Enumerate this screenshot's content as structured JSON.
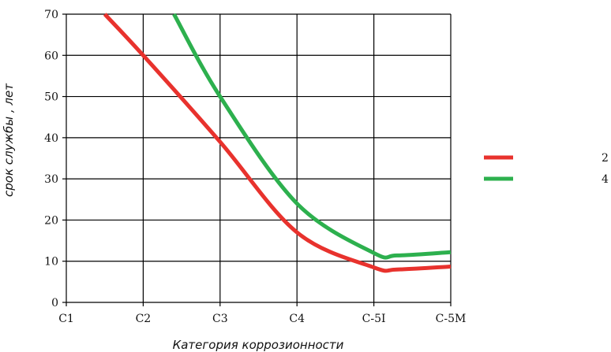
{
  "chart_data": {
    "type": "line",
    "categories": [
      "C1",
      "C2",
      "C3",
      "C4",
      "C-5I",
      "C-5M"
    ],
    "xlabel": "Категория коррозионности",
    "ylabel": "срок службы , лет",
    "ylim": [
      0,
      70
    ],
    "yticks": [
      0,
      10,
      20,
      30,
      40,
      50,
      60,
      70
    ],
    "grid": true,
    "legend_position": "right",
    "series": [
      {
        "name": "2",
        "color": "#e8322d",
        "x": [
          0.5,
          1,
          2,
          3,
          4,
          4.3,
          5
        ],
        "y": [
          70,
          60,
          39,
          17,
          8.5,
          8,
          8.7
        ]
      },
      {
        "name": "4",
        "color": "#2db04e",
        "x": [
          1.4,
          2,
          3,
          4,
          4.3,
          5
        ],
        "y": [
          70,
          50,
          24,
          12,
          11.4,
          12.2
        ]
      }
    ]
  }
}
